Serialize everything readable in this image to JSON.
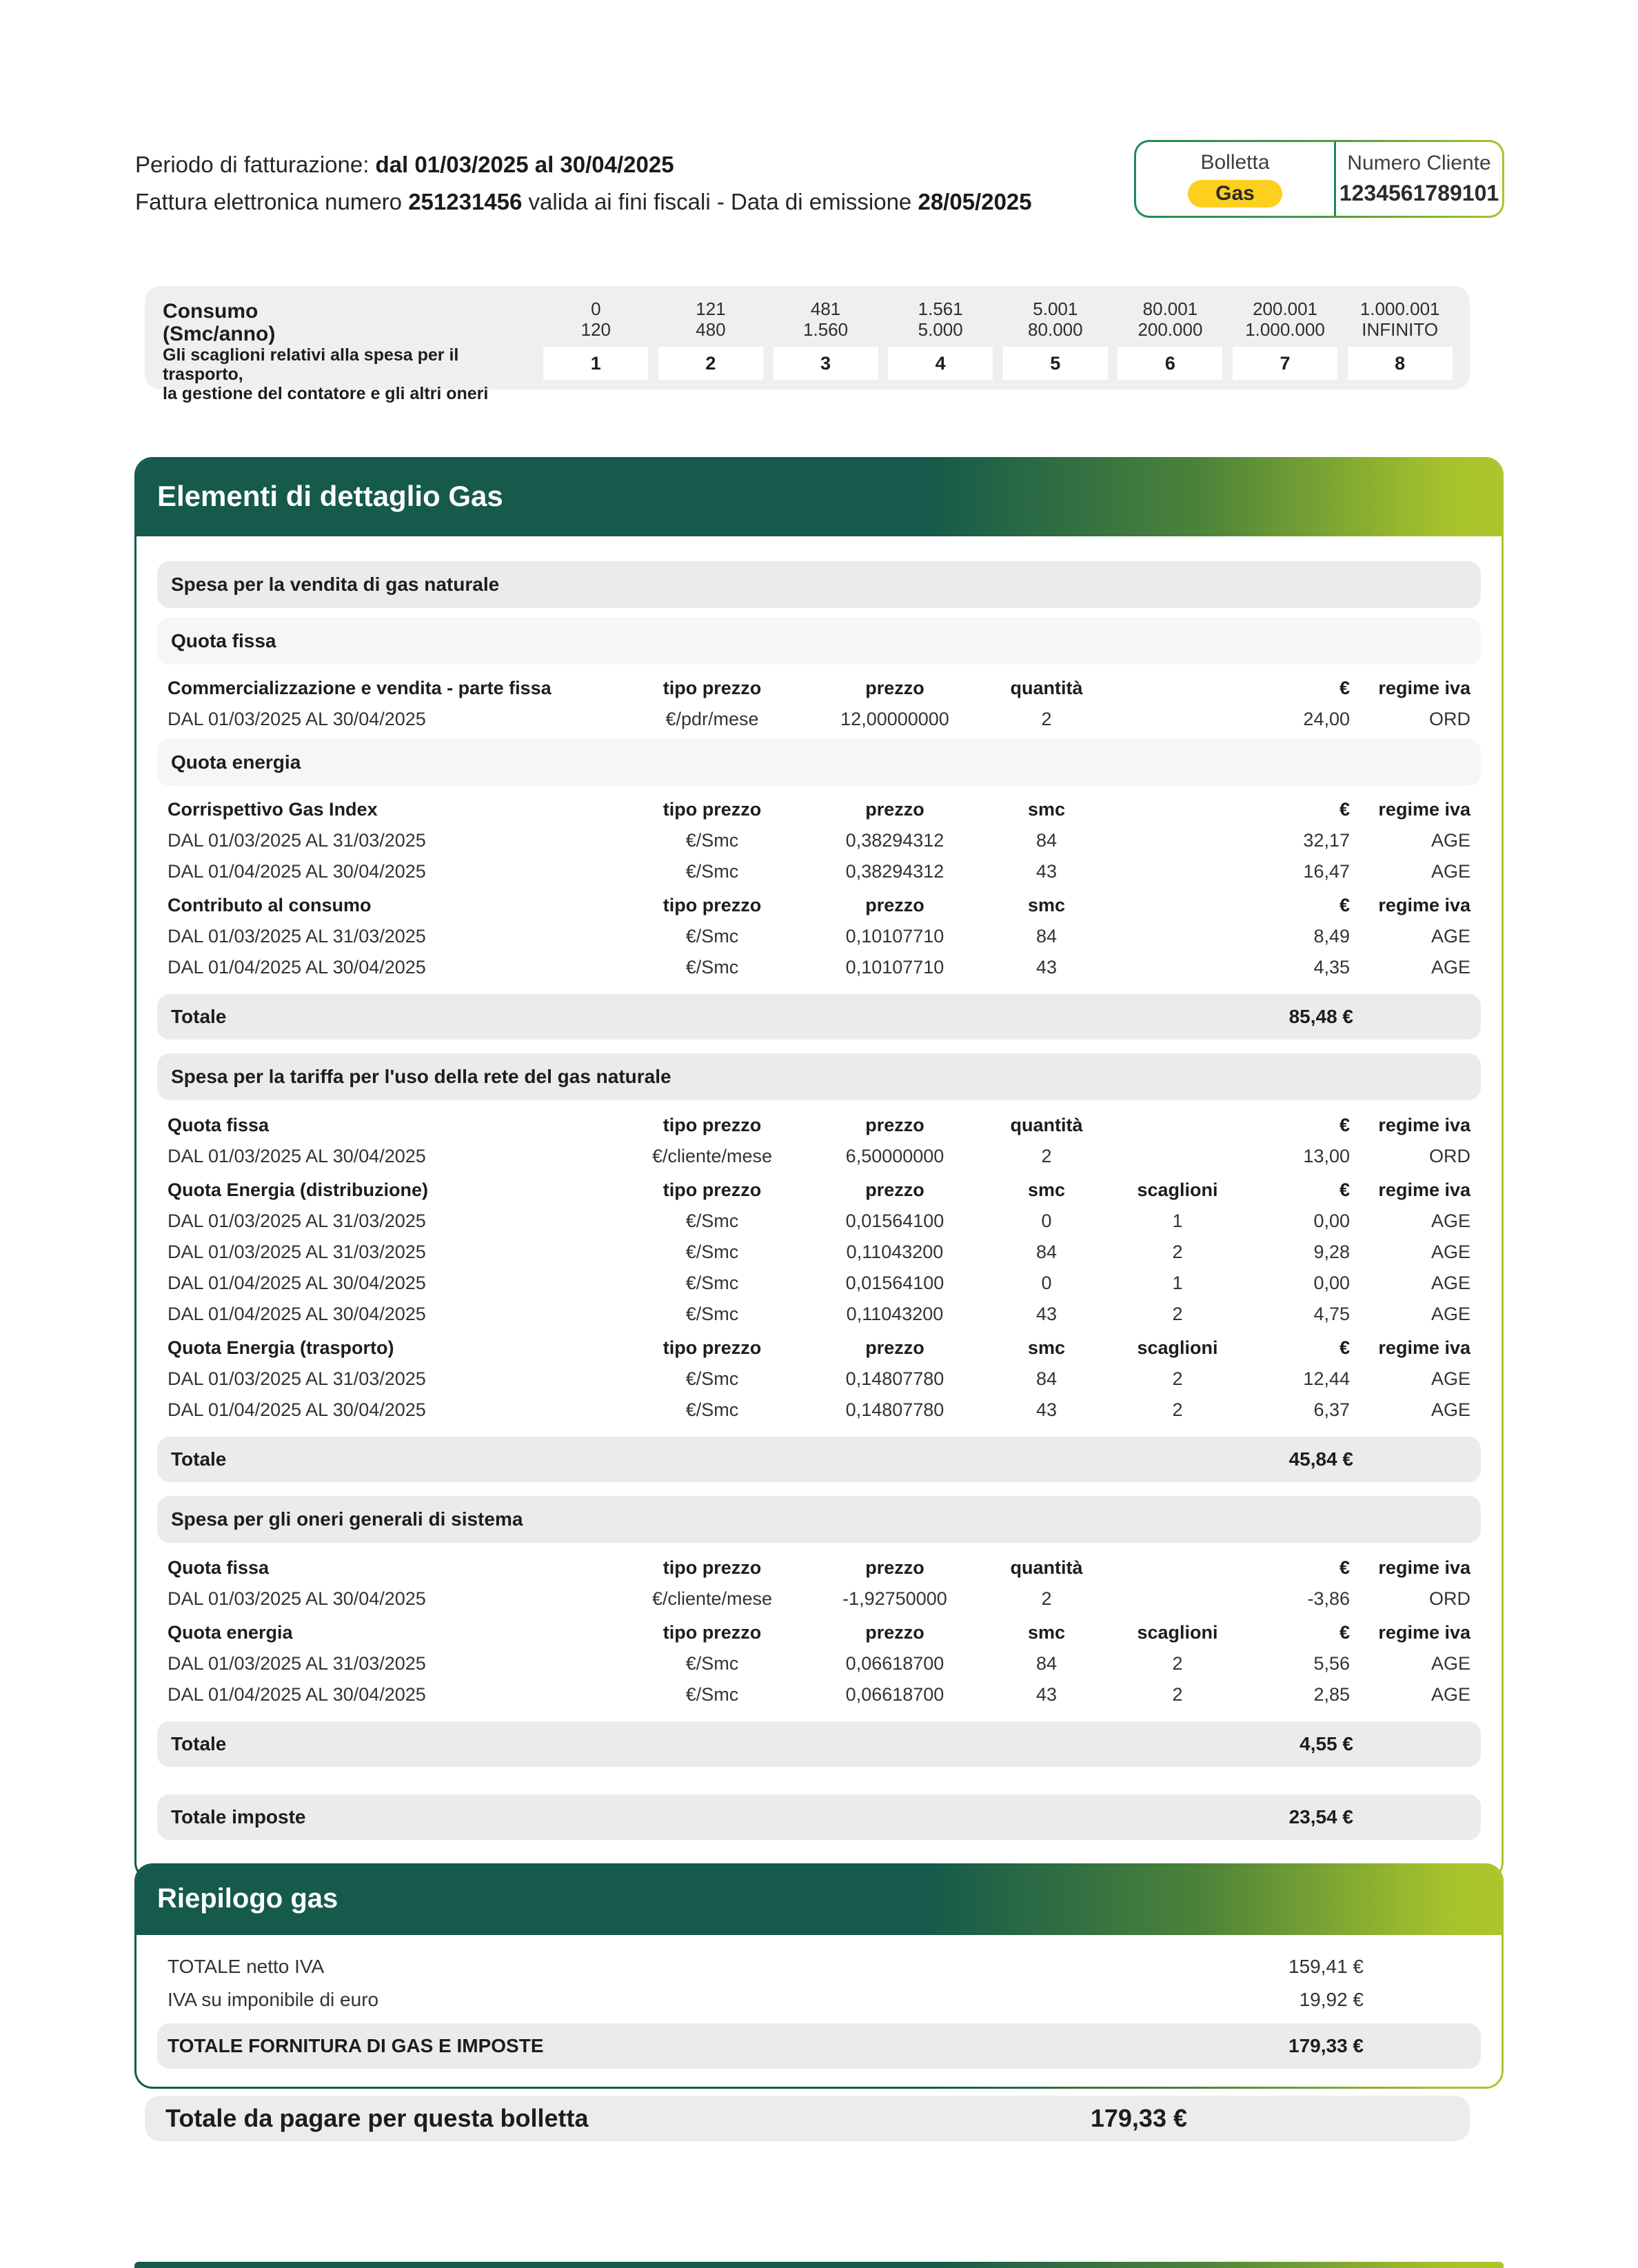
{
  "header": {
    "billing_period_label": "Periodo di fatturazione: ",
    "billing_period_value": "dal 01/03/2025 al 30/04/2025",
    "invoice_prefix": "Fattura elettronica numero ",
    "invoice_number": "251231456",
    "invoice_middle": " valida ai fini fiscali - Data di emissione ",
    "emission_date": "28/05/2025",
    "badge": {
      "bolletta_label": "Bolletta",
      "type_label": "Gas",
      "customer_label": "Numero Cliente",
      "customer_number": "1234561789101"
    }
  },
  "consumo_table": {
    "consumo_label_line1": "Consumo",
    "consumo_label_line2": "(Smc/anno)",
    "scaglioni_label_line1": "Gli scaglioni relativi alla spesa per il trasporto,",
    "scaglioni_label_line2": "la gestione del contatore e gli altri oneri",
    "tiers": [
      {
        "min": "0",
        "max": "120",
        "n": "1"
      },
      {
        "min": "121",
        "max": "480",
        "n": "2"
      },
      {
        "min": "481",
        "max": "1.560",
        "n": "3"
      },
      {
        "min": "1.561",
        "max": "5.000",
        "n": "4"
      },
      {
        "min": "5.001",
        "max": "80.000",
        "n": "5"
      },
      {
        "min": "80.001",
        "max": "200.000",
        "n": "6"
      },
      {
        "min": "200.001",
        "max": "1.000.000",
        "n": "7"
      },
      {
        "min": "1.000.001",
        "max": "INFINITO",
        "n": "8"
      }
    ]
  },
  "detail": {
    "title": "Elementi di dettaglio Gas",
    "blocks": [
      {
        "type": "band",
        "style": "dark",
        "label": "Spesa per la vendita di gas naturale"
      },
      {
        "type": "band",
        "style": "light",
        "label": "Quota fissa"
      },
      {
        "type": "head",
        "label": "Commercializzazione e vendita - parte fissa",
        "cols": [
          "tipo prezzo",
          "prezzo",
          "quantità",
          "",
          "€",
          "regime iva"
        ]
      },
      {
        "type": "row",
        "cells": [
          "DAL 01/03/2025 AL 30/04/2025",
          "€/pdr/mese",
          "12,00000000",
          "2",
          "",
          "24,00",
          "ORD"
        ]
      },
      {
        "type": "band",
        "style": "light",
        "label": "Quota energia"
      },
      {
        "type": "head",
        "label": "Corrispettivo Gas Index",
        "cols": [
          "tipo prezzo",
          "prezzo",
          "smc",
          "",
          "€",
          "regime iva"
        ]
      },
      {
        "type": "row",
        "cells": [
          "DAL 01/03/2025 AL 31/03/2025",
          "€/Smc",
          "0,38294312",
          "84",
          "",
          "32,17",
          "AGE"
        ]
      },
      {
        "type": "row",
        "cells": [
          "DAL 01/04/2025 AL 30/04/2025",
          "€/Smc",
          "0,38294312",
          "43",
          "",
          "16,47",
          "AGE"
        ]
      },
      {
        "type": "head",
        "label": "Contributo al consumo",
        "cols": [
          "tipo prezzo",
          "prezzo",
          "smc",
          "",
          "€",
          "regime iva"
        ]
      },
      {
        "type": "row",
        "cells": [
          "DAL 01/03/2025 AL 31/03/2025",
          "€/Smc",
          "0,10107710",
          "84",
          "",
          "8,49",
          "AGE"
        ]
      },
      {
        "type": "row",
        "cells": [
          "DAL 01/04/2025 AL 30/04/2025",
          "€/Smc",
          "0,10107710",
          "43",
          "",
          "4,35",
          "AGE"
        ]
      },
      {
        "type": "total",
        "label": "Totale",
        "value": "85,48 €"
      },
      {
        "type": "band",
        "style": "dark",
        "label": "Spesa per la tariffa per l'uso della rete del gas naturale"
      },
      {
        "type": "head",
        "label": "Quota fissa",
        "cols": [
          "tipo prezzo",
          "prezzo",
          "quantità",
          "",
          "€",
          "regime iva"
        ]
      },
      {
        "type": "row",
        "cells": [
          "DAL 01/03/2025 AL 30/04/2025",
          "€/cliente/mese",
          "6,50000000",
          "2",
          "",
          "13,00",
          "ORD"
        ]
      },
      {
        "type": "head",
        "label": "Quota Energia (distribuzione)",
        "cols": [
          "tipo prezzo",
          "prezzo",
          "smc",
          "scaglioni",
          "€",
          "regime iva"
        ]
      },
      {
        "type": "row",
        "cells": [
          "DAL 01/03/2025 AL 31/03/2025",
          "€/Smc",
          "0,01564100",
          "0",
          "1",
          "0,00",
          "AGE"
        ]
      },
      {
        "type": "row",
        "cells": [
          "DAL 01/03/2025 AL 31/03/2025",
          "€/Smc",
          "0,11043200",
          "84",
          "2",
          "9,28",
          "AGE"
        ]
      },
      {
        "type": "row",
        "cells": [
          "DAL 01/04/2025 AL 30/04/2025",
          "€/Smc",
          "0,01564100",
          "0",
          "1",
          "0,00",
          "AGE"
        ]
      },
      {
        "type": "row",
        "cells": [
          "DAL 01/04/2025 AL 30/04/2025",
          "€/Smc",
          "0,11043200",
          "43",
          "2",
          "4,75",
          "AGE"
        ]
      },
      {
        "type": "head",
        "label": "Quota Energia (trasporto)",
        "cols": [
          "tipo prezzo",
          "prezzo",
          "smc",
          "scaglioni",
          "€",
          "regime iva"
        ]
      },
      {
        "type": "row",
        "cells": [
          "DAL 01/03/2025 AL 31/03/2025",
          "€/Smc",
          "0,14807780",
          "84",
          "2",
          "12,44",
          "AGE"
        ]
      },
      {
        "type": "row",
        "cells": [
          "DAL 01/04/2025 AL 30/04/2025",
          "€/Smc",
          "0,14807780",
          "43",
          "2",
          "6,37",
          "AGE"
        ]
      },
      {
        "type": "total",
        "label": "Totale",
        "value": "45,84 €"
      },
      {
        "type": "band",
        "style": "dark",
        "label": "Spesa per gli oneri generali di sistema"
      },
      {
        "type": "head",
        "label": "Quota fissa",
        "cols": [
          "tipo prezzo",
          "prezzo",
          "quantità",
          "",
          "€",
          "regime iva"
        ]
      },
      {
        "type": "row",
        "cells": [
          "DAL 01/03/2025 AL 30/04/2025",
          "€/cliente/mese",
          "-1,92750000",
          "2",
          "",
          "-3,86",
          "ORD"
        ]
      },
      {
        "type": "head",
        "label": "Quota energia",
        "cols": [
          "tipo prezzo",
          "prezzo",
          "smc",
          "scaglioni",
          "€",
          "regime iva"
        ]
      },
      {
        "type": "row",
        "cells": [
          "DAL 01/03/2025 AL 31/03/2025",
          "€/Smc",
          "0,06618700",
          "84",
          "2",
          "5,56",
          "AGE"
        ]
      },
      {
        "type": "row",
        "cells": [
          "DAL 01/04/2025 AL 30/04/2025",
          "€/Smc",
          "0,06618700",
          "43",
          "2",
          "2,85",
          "AGE"
        ]
      },
      {
        "type": "total",
        "label": "Totale",
        "value": "4,55 €"
      },
      {
        "type": "total",
        "label": "Totale imposte",
        "value": "23,54 €",
        "spaced": true
      }
    ]
  },
  "riepilogo": {
    "title": "Riepilogo gas",
    "rows": [
      {
        "label": "TOTALE netto IVA",
        "value": "159,41 €",
        "emphasis": false
      },
      {
        "label": "IVA su imponibile di euro",
        "value": "19,92 €",
        "emphasis": false
      },
      {
        "label": "TOTALE FORNITURA DI GAS E IMPOSTE",
        "value": "179,33 €",
        "emphasis": true
      }
    ]
  },
  "pay_bar": {
    "label": "Totale da pagare per questa bolletta",
    "value": "179,33 €"
  },
  "colors": {
    "brand_dark_green": "#155a4a",
    "brand_lime": "#abc62c",
    "badge_border_green": "#1f8a58",
    "gas_pill_yellow": "#fdd01f",
    "band_gray": "#ebebe9",
    "band_light_gray": "#f6f6f4"
  }
}
